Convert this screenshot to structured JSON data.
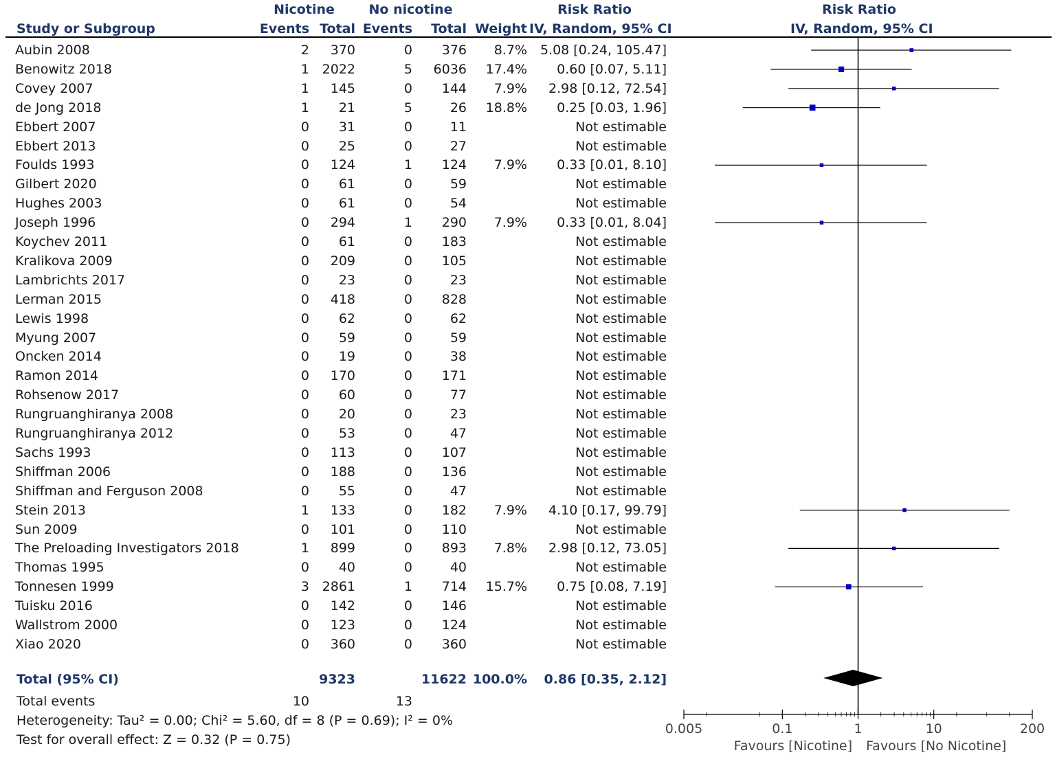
{
  "chart_data": {
    "type": "forest",
    "headers": {
      "group1": "Nicotine",
      "group2": "No nicotine",
      "study_col": "Study or Subgroup",
      "events": "Events",
      "total": "Total",
      "weight": "Weight",
      "effect_title": "Risk Ratio",
      "effect_sub": "IV, Random, 95% CI",
      "plot_title": "Risk Ratio",
      "plot_sub": "IV, Random, 95% CI"
    },
    "studies": [
      {
        "name": "Aubin 2008",
        "e1": "2",
        "n1": "370",
        "e2": "0",
        "n2": "376",
        "weight": "8.7%",
        "ci_text": "5.08 [0.24, 105.47]",
        "rr": 5.08,
        "lo": 0.24,
        "hi": 105.47,
        "w": 8.7
      },
      {
        "name": "Benowitz 2018",
        "e1": "1",
        "n1": "2022",
        "e2": "5",
        "n2": "6036",
        "weight": "17.4%",
        "ci_text": "0.60 [0.07, 5.11]",
        "rr": 0.6,
        "lo": 0.07,
        "hi": 5.11,
        "w": 17.4
      },
      {
        "name": "Covey 2007",
        "e1": "1",
        "n1": "145",
        "e2": "0",
        "n2": "144",
        "weight": "7.9%",
        "ci_text": "2.98 [0.12, 72.54]",
        "rr": 2.98,
        "lo": 0.12,
        "hi": 72.54,
        "w": 7.9
      },
      {
        "name": "de Jong 2018",
        "e1": "1",
        "n1": "21",
        "e2": "5",
        "n2": "26",
        "weight": "18.8%",
        "ci_text": "0.25 [0.03, 1.96]",
        "rr": 0.25,
        "lo": 0.03,
        "hi": 1.96,
        "w": 18.8
      },
      {
        "name": "Ebbert 2007",
        "e1": "0",
        "n1": "31",
        "e2": "0",
        "n2": "11",
        "weight": "",
        "ci_text": "Not estimable"
      },
      {
        "name": "Ebbert 2013",
        "e1": "0",
        "n1": "25",
        "e2": "0",
        "n2": "27",
        "weight": "",
        "ci_text": "Not estimable"
      },
      {
        "name": "Foulds 1993",
        "e1": "0",
        "n1": "124",
        "e2": "1",
        "n2": "124",
        "weight": "7.9%",
        "ci_text": "0.33 [0.01, 8.10]",
        "rr": 0.33,
        "lo": 0.01,
        "hi": 8.1,
        "w": 7.9
      },
      {
        "name": "Gilbert 2020",
        "e1": "0",
        "n1": "61",
        "e2": "0",
        "n2": "59",
        "weight": "",
        "ci_text": "Not estimable"
      },
      {
        "name": "Hughes 2003",
        "e1": "0",
        "n1": "61",
        "e2": "0",
        "n2": "54",
        "weight": "",
        "ci_text": "Not estimable"
      },
      {
        "name": "Joseph 1996",
        "e1": "0",
        "n1": "294",
        "e2": "1",
        "n2": "290",
        "weight": "7.9%",
        "ci_text": "0.33 [0.01, 8.04]",
        "rr": 0.33,
        "lo": 0.01,
        "hi": 8.04,
        "w": 7.9
      },
      {
        "name": "Koychev 2011",
        "e1": "0",
        "n1": "61",
        "e2": "0",
        "n2": "183",
        "weight": "",
        "ci_text": "Not estimable"
      },
      {
        "name": "Kralikova 2009",
        "e1": "0",
        "n1": "209",
        "e2": "0",
        "n2": "105",
        "weight": "",
        "ci_text": "Not estimable"
      },
      {
        "name": "Lambrichts 2017",
        "e1": "0",
        "n1": "23",
        "e2": "0",
        "n2": "23",
        "weight": "",
        "ci_text": "Not estimable"
      },
      {
        "name": "Lerman 2015",
        "e1": "0",
        "n1": "418",
        "e2": "0",
        "n2": "828",
        "weight": "",
        "ci_text": "Not estimable"
      },
      {
        "name": "Lewis 1998",
        "e1": "0",
        "n1": "62",
        "e2": "0",
        "n2": "62",
        "weight": "",
        "ci_text": "Not estimable"
      },
      {
        "name": "Myung 2007",
        "e1": "0",
        "n1": "59",
        "e2": "0",
        "n2": "59",
        "weight": "",
        "ci_text": "Not estimable"
      },
      {
        "name": "Oncken 2014",
        "e1": "0",
        "n1": "19",
        "e2": "0",
        "n2": "38",
        "weight": "",
        "ci_text": "Not estimable"
      },
      {
        "name": "Ramon 2014",
        "e1": "0",
        "n1": "170",
        "e2": "0",
        "n2": "171",
        "weight": "",
        "ci_text": "Not estimable"
      },
      {
        "name": "Rohsenow 2017",
        "e1": "0",
        "n1": "60",
        "e2": "0",
        "n2": "77",
        "weight": "",
        "ci_text": "Not estimable"
      },
      {
        "name": "Rungruanghiranya 2008",
        "e1": "0",
        "n1": "20",
        "e2": "0",
        "n2": "23",
        "weight": "",
        "ci_text": "Not estimable"
      },
      {
        "name": "Rungruanghiranya 2012",
        "e1": "0",
        "n1": "53",
        "e2": "0",
        "n2": "47",
        "weight": "",
        "ci_text": "Not estimable"
      },
      {
        "name": "Sachs 1993",
        "e1": "0",
        "n1": "113",
        "e2": "0",
        "n2": "107",
        "weight": "",
        "ci_text": "Not estimable"
      },
      {
        "name": "Shiffman 2006",
        "e1": "0",
        "n1": "188",
        "e2": "0",
        "n2": "136",
        "weight": "",
        "ci_text": "Not estimable"
      },
      {
        "name": "Shiffman and Ferguson 2008",
        "e1": "0",
        "n1": "55",
        "e2": "0",
        "n2": "47",
        "weight": "",
        "ci_text": "Not estimable"
      },
      {
        "name": "Stein 2013",
        "e1": "1",
        "n1": "133",
        "e2": "0",
        "n2": "182",
        "weight": "7.9%",
        "ci_text": "4.10 [0.17, 99.79]",
        "rr": 4.1,
        "lo": 0.17,
        "hi": 99.79,
        "w": 7.9
      },
      {
        "name": "Sun 2009",
        "e1": "0",
        "n1": "101",
        "e2": "0",
        "n2": "110",
        "weight": "",
        "ci_text": "Not estimable"
      },
      {
        "name": "The Preloading Investigators 2018",
        "e1": "1",
        "n1": "899",
        "e2": "0",
        "n2": "893",
        "weight": "7.8%",
        "ci_text": "2.98 [0.12, 73.05]",
        "rr": 2.98,
        "lo": 0.12,
        "hi": 73.05,
        "w": 7.8
      },
      {
        "name": "Thomas 1995",
        "e1": "0",
        "n1": "40",
        "e2": "0",
        "n2": "40",
        "weight": "",
        "ci_text": "Not estimable"
      },
      {
        "name": "Tonnesen 1999",
        "e1": "3",
        "n1": "2861",
        "e2": "1",
        "n2": "714",
        "weight": "15.7%",
        "ci_text": "0.75 [0.08, 7.19]",
        "rr": 0.75,
        "lo": 0.08,
        "hi": 7.19,
        "w": 15.7
      },
      {
        "name": "Tuisku 2016",
        "e1": "0",
        "n1": "142",
        "e2": "0",
        "n2": "146",
        "weight": "",
        "ci_text": "Not estimable"
      },
      {
        "name": "Wallstrom 2000",
        "e1": "0",
        "n1": "123",
        "e2": "0",
        "n2": "124",
        "weight": "",
        "ci_text": "Not estimable"
      },
      {
        "name": "Xiao 2020",
        "e1": "0",
        "n1": "360",
        "e2": "0",
        "n2": "360",
        "weight": "",
        "ci_text": "Not estimable"
      }
    ],
    "total": {
      "label": "Total (95% CI)",
      "n1": "9323",
      "n2": "11622",
      "weight": "100.0%",
      "ci_text": "0.86 [0.35, 2.12]",
      "rr": 0.86,
      "lo": 0.35,
      "hi": 2.12
    },
    "total_events": {
      "label": "Total events",
      "e1": "10",
      "e2": "13"
    },
    "heterogeneity": "Heterogeneity: Tau² = 0.00; Chi² = 5.60, df = 8 (P = 0.69); I² = 0%",
    "overall_effect": "Test for overall effect: Z = 0.32 (P = 0.75)",
    "axis": {
      "scale": "log",
      "range": [
        0.005,
        200
      ],
      "ticks": [
        {
          "value": 0.005,
          "label": "0.005"
        },
        {
          "value": 0.1,
          "label": "0.1"
        },
        {
          "value": 1,
          "label": "1"
        },
        {
          "value": 10,
          "label": "10"
        },
        {
          "value": 200,
          "label": "200"
        }
      ],
      "favours_left": "Favours [Nicotine]",
      "favours_right": "Favours [No Nicotine]"
    },
    "colors": {
      "marker": "#0000c0",
      "diamond": "#000000",
      "header": "#1f3768"
    }
  }
}
